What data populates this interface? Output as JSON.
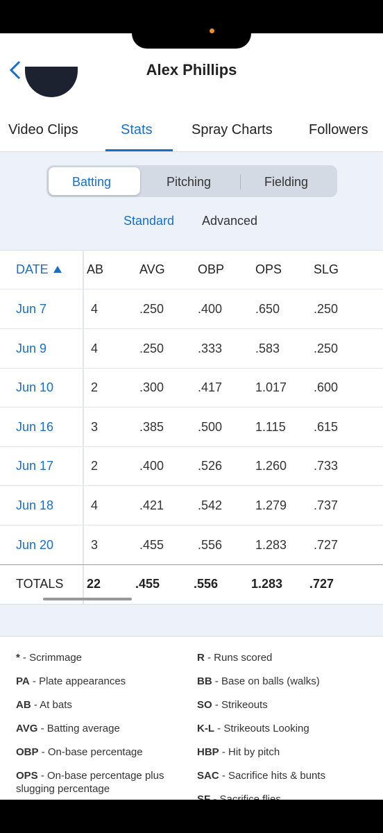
{
  "header": {
    "title": "Alex Phillips"
  },
  "tabs": [
    "Video Clips",
    "Stats",
    "Spray Charts",
    "Followers"
  ],
  "segments": [
    "Batting",
    "Pitching",
    "Fielding"
  ],
  "subtabs": [
    "Standard",
    "Advanced"
  ],
  "table": {
    "columns": [
      "DATE",
      "AB",
      "AVG",
      "OBP",
      "OPS",
      "SLG"
    ],
    "rows": [
      [
        "Jun 7",
        "4",
        ".250",
        ".400",
        ".650",
        ".250"
      ],
      [
        "Jun 9",
        "4",
        ".250",
        ".333",
        ".583",
        ".250"
      ],
      [
        "Jun 10",
        "2",
        ".300",
        ".417",
        "1.017",
        ".600"
      ],
      [
        "Jun 16",
        "3",
        ".385",
        ".500",
        "1.115",
        ".615"
      ],
      [
        "Jun 17",
        "2",
        ".400",
        ".526",
        "1.260",
        ".733"
      ],
      [
        "Jun 18",
        "4",
        ".421",
        ".542",
        "1.279",
        ".737"
      ],
      [
        "Jun 20",
        "3",
        ".455",
        ".556",
        "1.283",
        ".727"
      ]
    ],
    "totals": [
      "TOTALS",
      "22",
      ".455",
      ".556",
      "1.283",
      ".727"
    ]
  },
  "legend": {
    "left": [
      {
        "abbr": "*",
        "desc": "- Scrimmage"
      },
      {
        "abbr": "PA",
        "desc": "- Plate appearances"
      },
      {
        "abbr": "AB",
        "desc": "- At bats"
      },
      {
        "abbr": "AVG",
        "desc": "- Batting average"
      },
      {
        "abbr": "OBP",
        "desc": "- On-base percentage"
      },
      {
        "abbr": "OPS",
        "desc": "- On-base percentage plus slugging percentage"
      }
    ],
    "right": [
      {
        "abbr": "R",
        "desc": "- Runs scored"
      },
      {
        "abbr": "BB",
        "desc": "- Base on balls (walks)"
      },
      {
        "abbr": "SO",
        "desc": "- Strikeouts"
      },
      {
        "abbr": "K-L",
        "desc": "- Strikeouts Looking"
      },
      {
        "abbr": "HBP",
        "desc": "- Hit by pitch"
      },
      {
        "abbr": "SAC",
        "desc": "- Sacrifice hits & bunts"
      },
      {
        "abbr": "SF",
        "desc": "- Sacrifice flies"
      }
    ]
  }
}
